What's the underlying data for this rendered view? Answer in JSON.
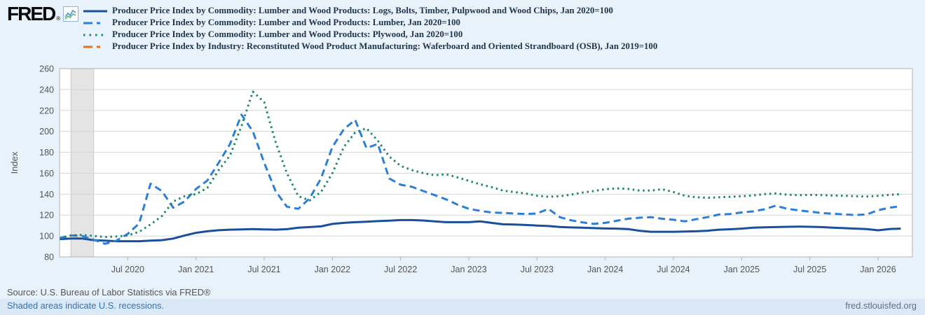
{
  "header": {
    "logo_text": "FRED",
    "logo_reg": "®"
  },
  "chart_data": {
    "type": "line",
    "ylabel": "Index",
    "ylim": [
      80,
      260
    ],
    "y_ticks": [
      80,
      100,
      120,
      140,
      160,
      180,
      200,
      220,
      240,
      260
    ],
    "x_start": "2020-01",
    "x_end": "2026-03",
    "x_tick_labels": [
      "Jul 2020",
      "Jan 2021",
      "Jul 2021",
      "Jan 2022",
      "Jul 2022",
      "Jan 2023",
      "Jul 2023",
      "Jan 2024",
      "Jul 2024",
      "Jan 2025",
      "Jul 2025",
      "Jan 2026"
    ],
    "grid": true,
    "legend_position": "top",
    "recession_band": {
      "from": "2020-02",
      "to": "2020-04"
    },
    "series": [
      {
        "name": "Producer Price Index by Commodity: Lumber and Wood Products: Logs, Bolts, Timber, Pulpwood and Wood Chips, Jan 2020=100",
        "color": "#1a4f9c",
        "line_style": "solid",
        "values": [
          97,
          97.5,
          97.5,
          96,
          95.5,
          95,
          95,
          95,
          95.5,
          96,
          97.5,
          100.5,
          103,
          104.5,
          105.5,
          106,
          106.3,
          106.6,
          106.3,
          106,
          106.5,
          107.9,
          108.5,
          109.2,
          111.5,
          112.5,
          113.2,
          113.6,
          114.2,
          114.6,
          115.2,
          115.2,
          114.8,
          114,
          113.2,
          113.2,
          113.2,
          113.9,
          112.5,
          111.2,
          111,
          110.5,
          110,
          109.5,
          108.6,
          108.2,
          107.9,
          107.5,
          107.2,
          107,
          106.6,
          105,
          104,
          104,
          104,
          104.2,
          104.5,
          105,
          106,
          106.4,
          107,
          108,
          108.3,
          108.5,
          108.8,
          109,
          108.8,
          108.5,
          108,
          107.5,
          107,
          106.6,
          105.4,
          106.6,
          107
        ]
      },
      {
        "name": "Producer Price Index by Commodity: Lumber and Wood Products: Lumber, Jan 2020=100",
        "color": "#2d7fd6",
        "line_style": "dashed",
        "values": [
          98,
          100.5,
          100,
          96.5,
          92.5,
          95.5,
          102,
          112,
          150,
          143,
          127,
          133,
          145,
          153,
          170,
          188,
          216,
          200,
          170,
          143,
          128,
          126,
          136,
          155,
          185,
          202,
          211,
          184,
          188,
          155,
          149,
          147,
          143,
          139,
          135,
          130,
          126,
          124,
          122.5,
          122,
          121.5,
          121,
          121.5,
          126,
          118,
          115,
          113,
          111.5,
          112.5,
          114.5,
          116.5,
          117.5,
          118,
          116.5,
          115.5,
          114,
          116,
          118,
          120.5,
          121,
          122.5,
          123.5,
          125.5,
          129,
          126,
          124.5,
          123.3,
          122,
          121.3,
          120.6,
          120,
          120.6,
          124.6,
          127,
          128.5
        ]
      },
      {
        "name": "Producer Price Index by Commodity: Lumber and Wood Products: Plywood, Jan 2020=100",
        "color": "#1f8571",
        "line_style": "dotted",
        "values": [
          98,
          100.5,
          101,
          100,
          99,
          99.5,
          100.5,
          104,
          111,
          119,
          133,
          138,
          140,
          146,
          163,
          177,
          205,
          238,
          228,
          190,
          160,
          138,
          134,
          142,
          160,
          185,
          199,
          203,
          191,
          176,
          167,
          163,
          160,
          158,
          159,
          156,
          152.7,
          149.4,
          146.7,
          143.4,
          142,
          140.6,
          138.5,
          137.5,
          138,
          139.5,
          141.5,
          143,
          144.7,
          145.5,
          145,
          143.5,
          143.4,
          144.7,
          142,
          138.5,
          137,
          136.5,
          137,
          137.5,
          138,
          138.7,
          140,
          140.6,
          139.5,
          139,
          139.3,
          139,
          138.7,
          138.4,
          138,
          137.7,
          138.4,
          139.3,
          140
        ]
      },
      {
        "name": "Producer Price Index by Industry: Reconstituted Wood Product Manufacturing: Waferboard and Oriented Strandboard (OSB), Jan 2019=100",
        "color": "#dd7326",
        "line_style": "dashed",
        "values": []
      }
    ]
  },
  "footer": {
    "source": "Source: U.S. Bureau of Labor Statistics via FRED®",
    "shaded_note": "Shaded areas indicate U.S. recessions.",
    "site": "fred.stlouisfed.org"
  }
}
